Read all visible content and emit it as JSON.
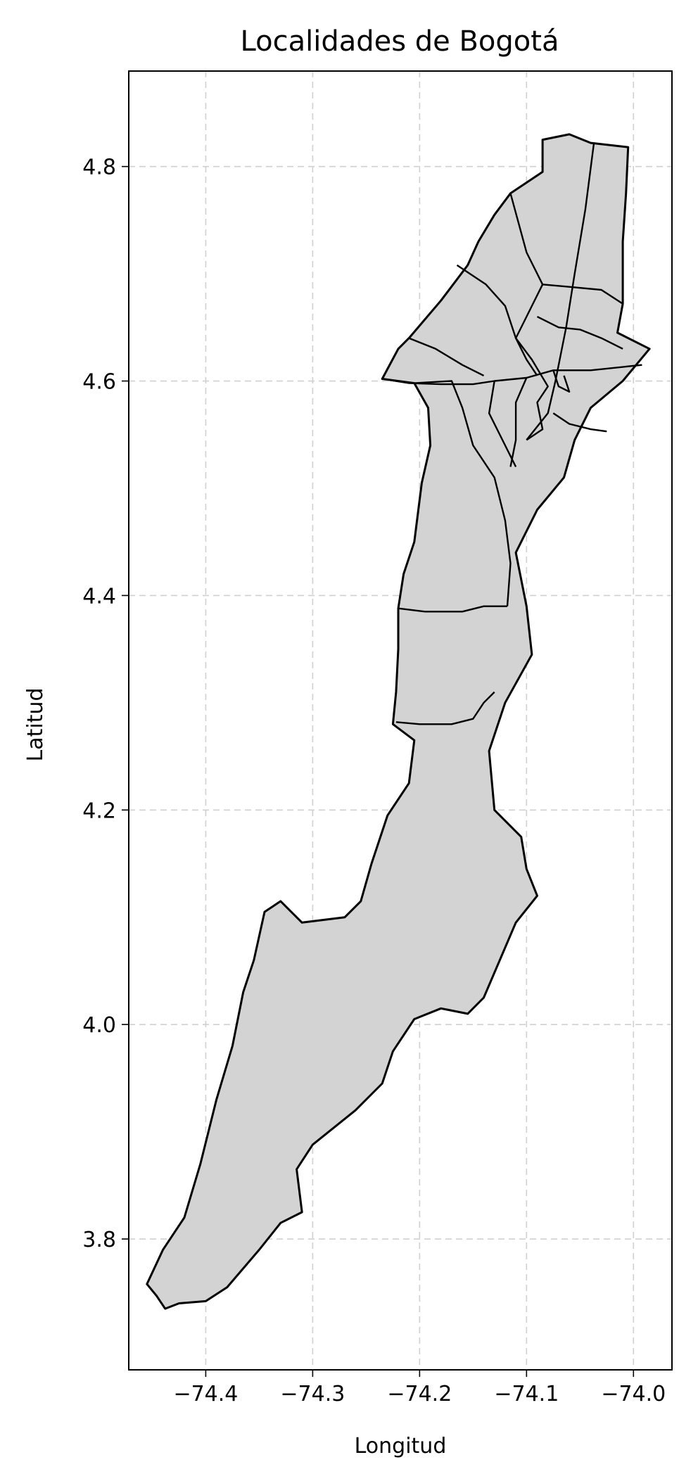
{
  "map": {
    "title": "Localidades de Bogotá",
    "xlabel": "Longitud",
    "ylabel": "Latitud",
    "xlim": [
      -74.472,
      -73.964
    ],
    "ylim": [
      3.678,
      4.889
    ],
    "x_ticks": [
      {
        "value": -74.4,
        "label": "−74.4"
      },
      {
        "value": -74.3,
        "label": "−74.3"
      },
      {
        "value": -74.2,
        "label": "−74.2"
      },
      {
        "value": -74.1,
        "label": "−74.1"
      },
      {
        "value": -74.0,
        "label": "−74.0"
      }
    ],
    "y_ticks": [
      {
        "value": 3.8,
        "label": "3.8"
      },
      {
        "value": 4.0,
        "label": "4.0"
      },
      {
        "value": 4.2,
        "label": "4.2"
      },
      {
        "value": 4.4,
        "label": "4.4"
      },
      {
        "value": 4.6,
        "label": "4.6"
      },
      {
        "value": 4.8,
        "label": "4.8"
      }
    ],
    "grid": true,
    "fill_color": "#d3d3d3",
    "edge_color": "#000000",
    "grid_color": "#d0d0d0",
    "outline": [
      [
        -74.446,
        3.747
      ],
      [
        -74.438,
        3.735
      ],
      [
        -74.425,
        3.74
      ],
      [
        -74.4,
        3.742
      ],
      [
        -74.38,
        3.755
      ],
      [
        -74.35,
        3.79
      ],
      [
        -74.33,
        3.815
      ],
      [
        -74.31,
        3.825
      ],
      [
        -74.315,
        3.865
      ],
      [
        -74.3,
        3.888
      ],
      [
        -74.26,
        3.92
      ],
      [
        -74.235,
        3.945
      ],
      [
        -74.225,
        3.975
      ],
      [
        -74.205,
        4.005
      ],
      [
        -74.18,
        4.015
      ],
      [
        -74.155,
        4.01
      ],
      [
        -74.14,
        4.025
      ],
      [
        -74.125,
        4.06
      ],
      [
        -74.11,
        4.095
      ],
      [
        -74.09,
        4.12
      ],
      [
        -74.1,
        4.145
      ],
      [
        -74.105,
        4.175
      ],
      [
        -74.13,
        4.2
      ],
      [
        -74.135,
        4.255
      ],
      [
        -74.12,
        4.3
      ],
      [
        -74.095,
        4.345
      ],
      [
        -74.1,
        4.39
      ],
      [
        -74.11,
        4.44
      ],
      [
        -74.09,
        4.48
      ],
      [
        -74.065,
        4.51
      ],
      [
        -74.055,
        4.545
      ],
      [
        -74.04,
        4.575
      ],
      [
        -74.01,
        4.6
      ],
      [
        -73.985,
        4.63
      ],
      [
        -74.015,
        4.645
      ],
      [
        -74.01,
        4.672
      ],
      [
        -74.01,
        4.73
      ],
      [
        -74.007,
        4.775
      ],
      [
        -74.005,
        4.818
      ],
      [
        -74.04,
        4.822
      ],
      [
        -74.06,
        4.83
      ],
      [
        -74.085,
        4.825
      ],
      [
        -74.085,
        4.795
      ],
      [
        -74.115,
        4.775
      ],
      [
        -74.13,
        4.755
      ],
      [
        -74.145,
        4.73
      ],
      [
        -74.155,
        4.708
      ],
      [
        -74.18,
        4.675
      ],
      [
        -74.21,
        4.64
      ],
      [
        -74.22,
        4.63
      ],
      [
        -74.235,
        4.602
      ],
      [
        -74.205,
        4.598
      ],
      [
        -74.192,
        4.575
      ],
      [
        -74.19,
        4.54
      ],
      [
        -74.198,
        4.505
      ],
      [
        -74.205,
        4.45
      ],
      [
        -74.215,
        4.42
      ],
      [
        -74.22,
        4.388
      ],
      [
        -74.22,
        4.35
      ],
      [
        -74.222,
        4.31
      ],
      [
        -74.225,
        4.28
      ],
      [
        -74.205,
        4.265
      ],
      [
        -74.21,
        4.225
      ],
      [
        -74.23,
        4.195
      ],
      [
        -74.245,
        4.15
      ],
      [
        -74.255,
        4.115
      ],
      [
        -74.27,
        4.1
      ],
      [
        -74.31,
        4.095
      ],
      [
        -74.33,
        4.115
      ],
      [
        -74.345,
        4.105
      ],
      [
        -74.355,
        4.06
      ],
      [
        -74.365,
        4.03
      ],
      [
        -74.375,
        3.98
      ],
      [
        -74.39,
        3.93
      ],
      [
        -74.405,
        3.87
      ],
      [
        -74.42,
        3.82
      ],
      [
        -74.44,
        3.79
      ],
      [
        -74.455,
        3.758
      ]
    ],
    "inner_boundaries": [
      [
        [
          -74.235,
          4.602
        ],
        [
          -74.21,
          4.598
        ],
        [
          -74.18,
          4.597
        ],
        [
          -74.15,
          4.597
        ],
        [
          -74.13,
          4.6
        ],
        [
          -74.1,
          4.603
        ],
        [
          -74.075,
          4.61
        ],
        [
          -74.04,
          4.61
        ],
        [
          -73.992,
          4.615
        ]
      ],
      [
        [
          -74.037,
          4.822
        ],
        [
          -74.045,
          4.76
        ],
        [
          -74.055,
          4.7
        ],
        [
          -74.063,
          4.65
        ],
        [
          -74.073,
          4.6
        ],
        [
          -74.08,
          4.57
        ],
        [
          -74.1,
          4.545
        ]
      ],
      [
        [
          -74.165,
          4.708
        ],
        [
          -74.138,
          4.69
        ],
        [
          -74.12,
          4.67
        ],
        [
          -74.11,
          4.64
        ],
        [
          -74.1,
          4.62
        ],
        [
          -74.09,
          4.605
        ]
      ],
      [
        [
          -74.115,
          4.775
        ],
        [
          -74.1,
          4.72
        ],
        [
          -74.085,
          4.69
        ],
        [
          -74.062,
          4.688
        ],
        [
          -74.03,
          4.685
        ],
        [
          -74.01,
          4.672
        ]
      ],
      [
        [
          -74.085,
          4.69
        ],
        [
          -74.1,
          4.66
        ],
        [
          -74.11,
          4.64
        ],
        [
          -74.095,
          4.62
        ],
        [
          -74.08,
          4.595
        ],
        [
          -74.09,
          4.58
        ],
        [
          -74.085,
          4.555
        ],
        [
          -74.1,
          4.545
        ]
      ],
      [
        [
          -74.09,
          4.66
        ],
        [
          -74.07,
          4.65
        ],
        [
          -74.05,
          4.648
        ],
        [
          -74.03,
          4.64
        ],
        [
          -74.01,
          4.63
        ]
      ],
      [
        [
          -74.21,
          4.64
        ],
        [
          -74.185,
          4.63
        ],
        [
          -74.16,
          4.615
        ],
        [
          -74.14,
          4.605
        ]
      ],
      [
        [
          -74.205,
          4.598
        ],
        [
          -74.17,
          4.6
        ],
        [
          -74.16,
          4.575
        ],
        [
          -74.15,
          4.54
        ],
        [
          -74.13,
          4.51
        ],
        [
          -74.12,
          4.47
        ],
        [
          -74.115,
          4.43
        ],
        [
          -74.118,
          4.39
        ]
      ],
      [
        [
          -74.13,
          4.6
        ],
        [
          -74.135,
          4.57
        ],
        [
          -74.12,
          4.54
        ],
        [
          -74.11,
          4.52
        ]
      ],
      [
        [
          -74.1,
          4.603
        ],
        [
          -74.11,
          4.58
        ],
        [
          -74.11,
          4.545
        ],
        [
          -74.115,
          4.52
        ]
      ],
      [
        [
          -74.075,
          4.57
        ],
        [
          -74.06,
          4.56
        ],
        [
          -74.04,
          4.555
        ],
        [
          -74.025,
          4.553
        ]
      ],
      [
        [
          -74.22,
          4.388
        ],
        [
          -74.195,
          4.385
        ],
        [
          -74.16,
          4.385
        ],
        [
          -74.14,
          4.39
        ],
        [
          -74.118,
          4.39
        ]
      ],
      [
        [
          -74.222,
          4.282
        ],
        [
          -74.2,
          4.28
        ],
        [
          -74.17,
          4.28
        ],
        [
          -74.15,
          4.285
        ],
        [
          -74.14,
          4.3
        ],
        [
          -74.13,
          4.31
        ]
      ],
      [
        [
          -74.075,
          4.61
        ],
        [
          -74.07,
          4.595
        ],
        [
          -74.06,
          4.59
        ],
        [
          -74.065,
          4.605
        ]
      ]
    ]
  }
}
